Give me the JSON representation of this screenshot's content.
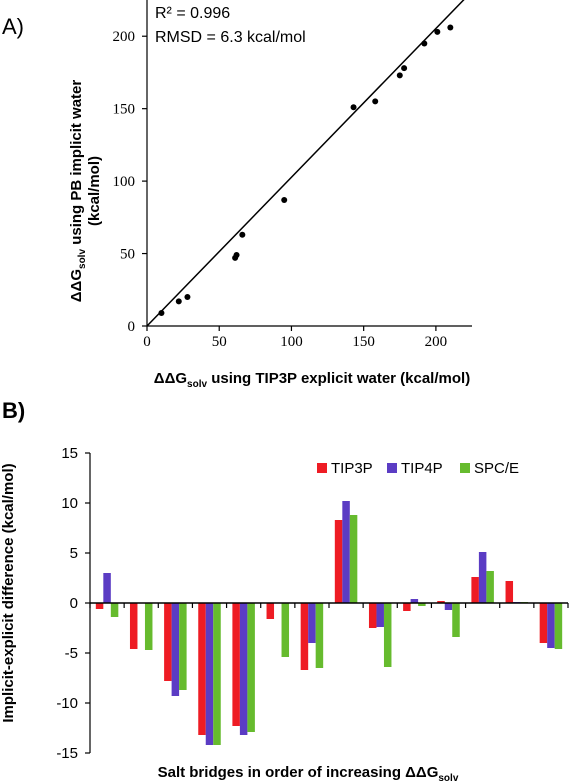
{
  "colors": {
    "TIP3P": "#ee1c24",
    "TIP4P": "#5b3cc4",
    "SPC/E": "#66bb2e",
    "axis": "#000000"
  },
  "chart_data": [
    {
      "type": "scatter",
      "panel_label": "A)",
      "xlabel_pre": "ΔΔG",
      "xlabel_sub": "solv",
      "xlabel_post": " using TIP3P explicit water (kcal/mol)",
      "ylabel_pre": "ΔΔG",
      "ylabel_sub": "solv",
      "ylabel_post": " using PB implicit water",
      "ylabel_line2": "(kcal/mol)",
      "annotations": [
        "R² = 0.996",
        "RMSD = 6.3 kcal/mol"
      ],
      "xlim": [
        0,
        225
      ],
      "ylim": [
        0,
        225
      ],
      "xticks": [
        0,
        50,
        100,
        150,
        200
      ],
      "yticks": [
        0,
        50,
        100,
        150,
        200
      ],
      "x": [
        10,
        22,
        28,
        61,
        62,
        66,
        95,
        143,
        158,
        175,
        178,
        192,
        201,
        210
      ],
      "y": [
        9,
        17,
        20,
        47,
        49,
        63,
        87,
        151,
        155,
        173,
        178,
        195,
        203,
        206
      ],
      "fit_line": {
        "x": [
          0,
          225
        ],
        "y": [
          0,
          231
        ]
      }
    },
    {
      "type": "bar",
      "panel_label": "B)",
      "xlabel_pre": "Salt bridges in order of increasing ΔΔG",
      "xlabel_sub": "solv",
      "ylabel": "Implicit-explicit difference (kcal/mol)",
      "ylim": [
        -15,
        15
      ],
      "yticks": [
        -15,
        -10,
        -5,
        0,
        5,
        10,
        15
      ],
      "legend_position": "top-right",
      "series": [
        {
          "name": "TIP3P",
          "values": [
            -0.6,
            -4.6,
            -7.8,
            -13.2,
            -12.3,
            -1.6,
            -6.7,
            8.3,
            -2.5,
            -0.8,
            0.2,
            2.6,
            2.2,
            -4.0
          ]
        },
        {
          "name": "TIP4P",
          "values": [
            3.0,
            0.0,
            -9.3,
            -14.2,
            -13.2,
            0.0,
            -4.0,
            10.2,
            -2.4,
            0.4,
            -0.7,
            5.1,
            0.1,
            -4.5
          ]
        },
        {
          "name": "SPC/E",
          "values": [
            -1.4,
            -4.7,
            -8.7,
            -14.2,
            -12.9,
            -5.4,
            -6.5,
            8.8,
            -6.4,
            -0.3,
            -3.4,
            3.2,
            0.1,
            -4.6
          ]
        }
      ]
    }
  ]
}
